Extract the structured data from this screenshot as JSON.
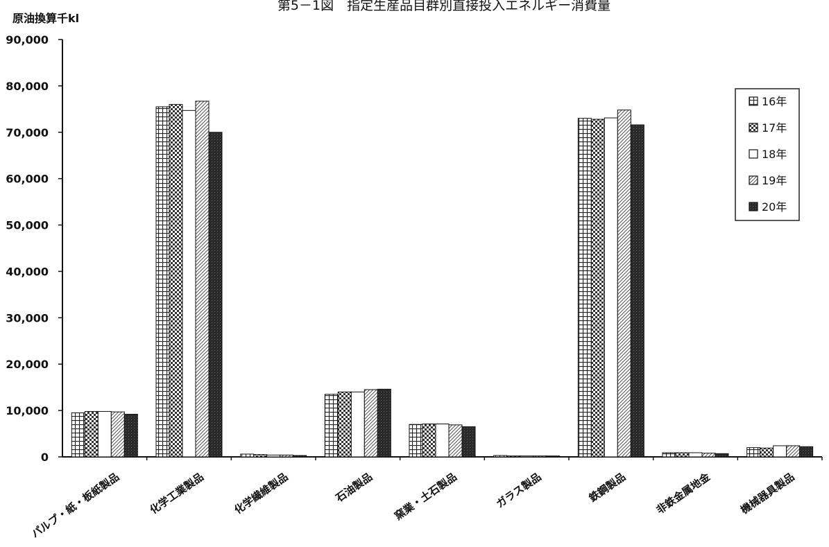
{
  "chart_data": {
    "type": "bar",
    "title": "第5－1図　指定生産品目群別直接投入エネルギー消費量",
    "ylabel": "原油換算千kl",
    "ylim": [
      0,
      90000
    ],
    "yticks": [
      "0",
      "10,000",
      "20,000",
      "30,000",
      "40,000",
      "50,000",
      "60,000",
      "70,000",
      "80,000",
      "90,000"
    ],
    "categories": [
      "パルプ・紙・板紙製品",
      "化学工業製品",
      "化学繊維製品",
      "石油製品",
      "窯業・土石製品",
      "ガラス製品",
      "鉄鋼製品",
      "非鉄金属地金",
      "機械器具製品"
    ],
    "series": [
      {
        "name": "16年",
        "values": [
          9500,
          75500,
          600,
          13500,
          7000,
          300,
          73000,
          900,
          2000
        ]
      },
      {
        "name": "17年",
        "values": [
          9800,
          76000,
          500,
          14000,
          7100,
          200,
          72800,
          900,
          1900
        ]
      },
      {
        "name": "18年",
        "values": [
          9800,
          74700,
          400,
          14000,
          7100,
          200,
          73100,
          900,
          2400
        ]
      },
      {
        "name": "19年",
        "values": [
          9700,
          76700,
          400,
          14500,
          6900,
          200,
          74800,
          800,
          2400
        ]
      },
      {
        "name": "20年",
        "values": [
          9200,
          70000,
          300,
          14600,
          6500,
          200,
          71600,
          700,
          2200
        ]
      }
    ],
    "legend_position": "top-right",
    "grid": false
  }
}
